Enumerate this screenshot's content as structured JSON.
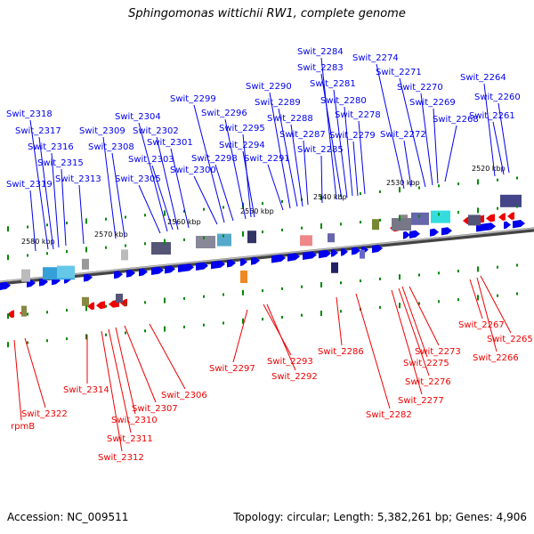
{
  "title": "Sphingomonas wittichii RW1, complete genome",
  "footer": {
    "accession": "Accession: NC_009511",
    "summary": "Topology: circular; Length: 5,382,261 bp; Genes: 4,906"
  },
  "colors": {
    "forward": "#0000ee",
    "reverse": "#ee0000",
    "backbone": "#888888",
    "tick": "#008800"
  },
  "coordinates": [
    "2520 kbp",
    "2530 kbp",
    "2540 kbp",
    "2550 kbp",
    "2560 kbp",
    "2570 kbp",
    "2580 kbp"
  ],
  "top_genes": [
    "Swit_2260",
    "Swit_2261",
    "Swit_2264",
    "Swit_2268",
    "Swit_2269",
    "Swit_2270",
    "Swit_2271",
    "Swit_2272",
    "Swit_2274",
    "Swit_2278",
    "Swit_2279",
    "Swit_2280",
    "Swit_2281",
    "Swit_2283",
    "Swit_2284",
    "Swit_2285",
    "Swit_2287",
    "Swit_2288",
    "Swit_2289",
    "Swit_2290",
    "Swit_2291",
    "Swit_2294",
    "Swit_2295",
    "Swit_2296",
    "Swit_2298",
    "Swit_2299",
    "Swit_2300",
    "Swit_2301",
    "Swit_2302",
    "Swit_2303",
    "Swit_2304",
    "Swit_2305",
    "Swit_2308",
    "Swit_2309",
    "Swit_2313",
    "Swit_2315",
    "Swit_2316",
    "Swit_2317",
    "Swit_2318",
    "Swit_2319"
  ],
  "bottom_genes": [
    "Swit_2265",
    "Swit_2266",
    "Swit_2267",
    "Swit_2273",
    "Swit_2275",
    "Swit_2276",
    "Swit_2277",
    "Swit_2282",
    "Swit_2286",
    "Swit_2292",
    "Swit_2293",
    "Swit_2297",
    "Swit_2306",
    "Swit_2307",
    "Swit_2310",
    "Swit_2311",
    "Swit_2312",
    "Swit_2314",
    "Swit_2322",
    "rpmB"
  ]
}
